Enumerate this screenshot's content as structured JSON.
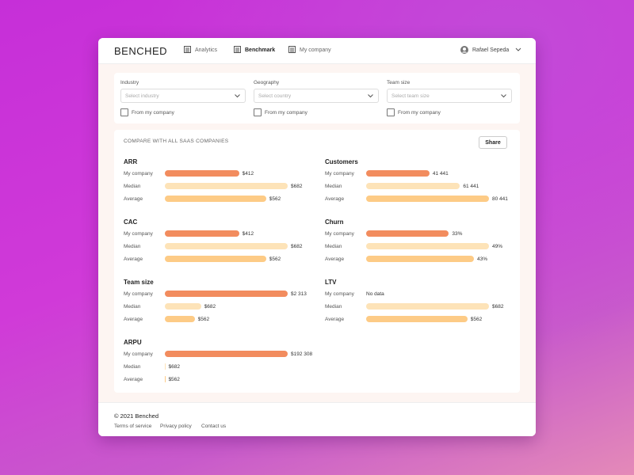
{
  "header": {
    "brand": "BENCHED",
    "nav": [
      {
        "label": "Analytics",
        "active": false
      },
      {
        "label": "Benchmark",
        "active": true
      },
      {
        "label": "My company",
        "active": false
      }
    ],
    "user": "Rafael Sepeda"
  },
  "filters": [
    {
      "label": "Industry",
      "placeholder": "Select industry",
      "checkbox": "From my company"
    },
    {
      "label": "Geography",
      "placeholder": "Select country",
      "checkbox": "From my company"
    },
    {
      "label": "Team size",
      "placeholder": "Select team size",
      "checkbox": "From my company"
    }
  ],
  "panel": {
    "title": "COMPARE WITH ALL SAAS COMPANIES",
    "share": "Share",
    "row_labels": [
      "My company",
      "Median",
      "Average"
    ],
    "colors": [
      "#f28c5e",
      "#fde3b8",
      "#fdcb86"
    ],
    "metrics": [
      {
        "name": "ARR",
        "values": [
          412,
          682,
          562
        ],
        "value_labels": [
          "$412",
          "$682",
          "$562"
        ]
      },
      {
        "name": "Customers",
        "values": [
          41441,
          61441,
          80441
        ],
        "value_labels": [
          "41 441",
          "61 441",
          "80 441"
        ]
      },
      {
        "name": "CAC",
        "values": [
          412,
          682,
          562
        ],
        "value_labels": [
          "$412",
          "$682",
          "$562"
        ]
      },
      {
        "name": "Churn",
        "values": [
          33,
          49,
          43
        ],
        "value_labels": [
          "33%",
          "49%",
          "43%"
        ]
      },
      {
        "name": "Team size",
        "values": [
          2313,
          682,
          562
        ],
        "value_labels": [
          "$2 313",
          "$682",
          "$562"
        ]
      },
      {
        "name": "LTV",
        "values": [
          null,
          682,
          562
        ],
        "value_labels": [
          "No data",
          "$682",
          "$562"
        ]
      },
      {
        "name": "ARPU",
        "values": [
          192308,
          682,
          562
        ],
        "value_labels": [
          "$192 308",
          "$682",
          "$562"
        ]
      }
    ]
  },
  "footer": {
    "copyright": "© 2021 Benched",
    "links": [
      "Terms of service",
      "Privacy policy",
      "Contact us"
    ]
  }
}
